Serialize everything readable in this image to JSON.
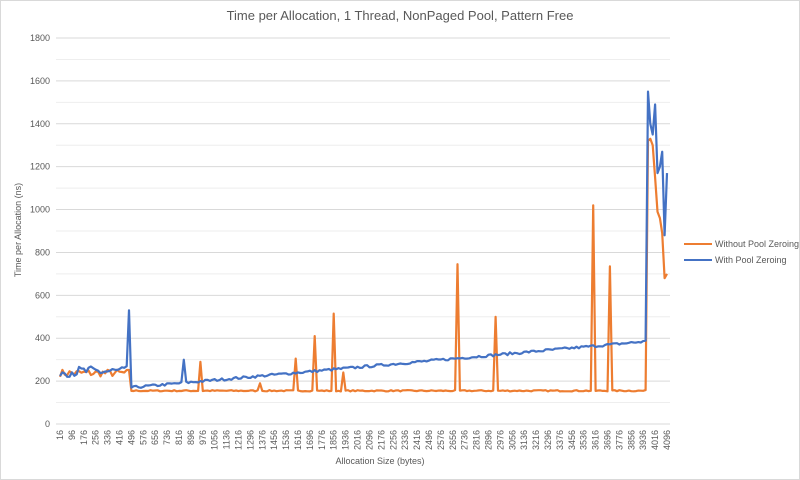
{
  "chart_data": {
    "type": "line",
    "title": "Time per Allocation, 1 Thread, NonPaged Pool, Pattern Free",
    "xlabel": "Allocation Size (bytes)",
    "ylabel": "Time per Allocation (ns)",
    "ylim": [
      0,
      1800
    ],
    "yticks": [
      0,
      200,
      400,
      600,
      800,
      1000,
      1200,
      1400,
      1600,
      1800
    ],
    "x_start": 16,
    "x_step": 16,
    "x_end": 4096,
    "xtick_labels": [
      "16",
      "96",
      "176",
      "256",
      "336",
      "416",
      "496",
      "576",
      "656",
      "736",
      "816",
      "896",
      "976",
      "1056",
      "1136",
      "1216",
      "1296",
      "1376",
      "1456",
      "1536",
      "1616",
      "1696",
      "1776",
      "1856",
      "1936",
      "2016",
      "2096",
      "2176",
      "2256",
      "2336",
      "2416",
      "2496",
      "2576",
      "2656",
      "2736",
      "2816",
      "2896",
      "2976",
      "3056",
      "3136",
      "3216",
      "3296",
      "3376",
      "3456",
      "3536",
      "3616",
      "3696",
      "3776",
      "3856",
      "3936",
      "4016",
      "4096"
    ],
    "grid": true,
    "legend_position": "right",
    "series": [
      {
        "name": "Without Pool Zeroing",
        "color": "#ED7D31",
        "baseline": {
          "x_from": 496,
          "x_to": 3952,
          "value": 155
        },
        "early_segment": {
          "x_from": 16,
          "x_to": 480,
          "value_range": [
            220,
            255
          ]
        },
        "spikes": [
          {
            "x": 960,
            "y": 290
          },
          {
            "x": 1360,
            "y": 190
          },
          {
            "x": 1600,
            "y": 305
          },
          {
            "x": 1728,
            "y": 410
          },
          {
            "x": 1856,
            "y": 515
          },
          {
            "x": 1920,
            "y": 240
          },
          {
            "x": 2688,
            "y": 745
          },
          {
            "x": 2944,
            "y": 500
          },
          {
            "x": 3600,
            "y": 1020
          },
          {
            "x": 3712,
            "y": 735
          }
        ],
        "tail": [
          {
            "x": 3968,
            "y": 1320
          },
          {
            "x": 3984,
            "y": 1330
          },
          {
            "x": 4000,
            "y": 1300
          },
          {
            "x": 4016,
            "y": 1150
          },
          {
            "x": 4032,
            "y": 990
          },
          {
            "x": 4048,
            "y": 960
          },
          {
            "x": 4064,
            "y": 890
          },
          {
            "x": 4080,
            "y": 680
          },
          {
            "x": 4096,
            "y": 700
          }
        ]
      },
      {
        "name": "With Pool Zeroing",
        "color": "#4472C4",
        "early_segment": {
          "x_from": 16,
          "x_to": 480,
          "value_range": [
            220,
            270
          ]
        },
        "trend": {
          "x_from": 496,
          "x_to": 3952,
          "start_value": 170,
          "end_value": 385
        },
        "spikes": [
          {
            "x": 480,
            "y": 530
          },
          {
            "x": 848,
            "y": 300
          }
        ],
        "tail": [
          {
            "x": 3968,
            "y": 1550
          },
          {
            "x": 3984,
            "y": 1400
          },
          {
            "x": 4000,
            "y": 1350
          },
          {
            "x": 4016,
            "y": 1490
          },
          {
            "x": 4032,
            "y": 1170
          },
          {
            "x": 4048,
            "y": 1200
          },
          {
            "x": 4064,
            "y": 1270
          },
          {
            "x": 4080,
            "y": 880
          },
          {
            "x": 4096,
            "y": 1170
          }
        ]
      }
    ]
  },
  "legend": {
    "items": [
      {
        "label": "Without Pool Zeroing",
        "color": "#ED7D31"
      },
      {
        "label": "With Pool Zeroing",
        "color": "#4472C4"
      }
    ]
  }
}
